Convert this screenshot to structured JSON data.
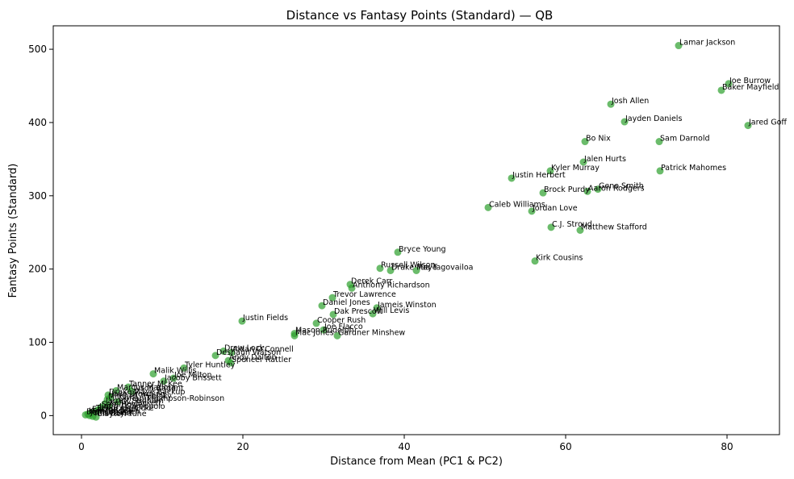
{
  "chart_data": {
    "type": "scatter",
    "title": "Distance vs Fantasy Points (Standard) — QB",
    "xlabel": "Distance from Mean (PC1 & PC2)",
    "ylabel": "Fantasy Points (Standard)",
    "xlim": [
      -3.5,
      86.5
    ],
    "ylim": [
      -26,
      532
    ],
    "xticks": [
      0,
      20,
      40,
      60,
      80
    ],
    "yticks": [
      0,
      100,
      200,
      300,
      400,
      500
    ],
    "grid": false,
    "marker_color": "#2ca02c",
    "points": [
      {
        "name": "Lamar Jackson",
        "x": 74.0,
        "y": 505
      },
      {
        "name": "Joe Burrow",
        "x": 80.2,
        "y": 453
      },
      {
        "name": "Baker Mayfield",
        "x": 79.3,
        "y": 444
      },
      {
        "name": "Josh Allen",
        "x": 65.6,
        "y": 425
      },
      {
        "name": "Jayden Daniels",
        "x": 67.3,
        "y": 401
      },
      {
        "name": "Jared Goff",
        "x": 82.6,
        "y": 396
      },
      {
        "name": "Bo Nix",
        "x": 62.4,
        "y": 374
      },
      {
        "name": "Sam Darnold",
        "x": 71.6,
        "y": 374
      },
      {
        "name": "Jalen Hurts",
        "x": 62.2,
        "y": 346
      },
      {
        "name": "Patrick Mahomes",
        "x": 71.7,
        "y": 334
      },
      {
        "name": "Kyler Murray",
        "x": 58.1,
        "y": 334
      },
      {
        "name": "Justin Herbert",
        "x": 53.3,
        "y": 324
      },
      {
        "name": "Geno Smith",
        "x": 64.0,
        "y": 309
      },
      {
        "name": "Aaron Rodgers",
        "x": 62.7,
        "y": 306
      },
      {
        "name": "Brock Purdy",
        "x": 57.2,
        "y": 304
      },
      {
        "name": "Caleb Williams",
        "x": 50.4,
        "y": 284
      },
      {
        "name": "Jordan Love",
        "x": 55.8,
        "y": 279
      },
      {
        "name": "C.J. Stroud",
        "x": 58.2,
        "y": 257
      },
      {
        "name": "Matthew Stafford",
        "x": 61.8,
        "y": 253
      },
      {
        "name": "Bryce Young",
        "x": 39.2,
        "y": 223
      },
      {
        "name": "Kirk Cousins",
        "x": 56.2,
        "y": 211
      },
      {
        "name": "Russell Wilson",
        "x": 37.0,
        "y": 201
      },
      {
        "name": "Drake Maye",
        "x": 38.3,
        "y": 198
      },
      {
        "name": "Tua Tagovailoa",
        "x": 41.5,
        "y": 198
      },
      {
        "name": "Derek Carr",
        "x": 33.3,
        "y": 179
      },
      {
        "name": "Anthony Richardson",
        "x": 33.5,
        "y": 174
      },
      {
        "name": "Trevor Lawrence",
        "x": 31.1,
        "y": 161
      },
      {
        "name": "Daniel Jones",
        "x": 29.8,
        "y": 150
      },
      {
        "name": "Jameis Winston",
        "x": 36.6,
        "y": 147
      },
      {
        "name": "Will Levis",
        "x": 36.1,
        "y": 139
      },
      {
        "name": "Dak Prescott",
        "x": 31.2,
        "y": 138
      },
      {
        "name": "Justin Fields",
        "x": 19.9,
        "y": 129
      },
      {
        "name": "Cooper Rush",
        "x": 29.1,
        "y": 126
      },
      {
        "name": "Joe Flacco",
        "x": 30.0,
        "y": 117
      },
      {
        "name": "Mason Rudolph",
        "x": 26.4,
        "y": 112
      },
      {
        "name": "Gardner Minshew",
        "x": 31.7,
        "y": 109
      },
      {
        "name": "Mac Jones",
        "x": 26.4,
        "y": 109
      },
      {
        "name": "Drew Lock",
        "x": 17.6,
        "y": 88
      },
      {
        "name": "Aidan O'Connell",
        "x": 18.6,
        "y": 86
      },
      {
        "name": "Deshaun Watson",
        "x": 16.6,
        "y": 82
      },
      {
        "name": "Andy Dalton",
        "x": 18.2,
        "y": 75
      },
      {
        "name": "Spencer Rattler",
        "x": 18.5,
        "y": 72
      },
      {
        "name": "Tyler Huntley",
        "x": 12.7,
        "y": 65
      },
      {
        "name": "Malik Willis",
        "x": 8.9,
        "y": 57
      },
      {
        "name": "Joe Milton",
        "x": 11.4,
        "y": 51
      },
      {
        "name": "Jacoby Brissett",
        "x": 10.2,
        "y": 47
      },
      {
        "name": "Tanner McKee",
        "x": 5.8,
        "y": 39
      },
      {
        "name": "Marcus Mariota",
        "x": 4.3,
        "y": 34
      },
      {
        "name": "Tyson Bagent",
        "x": 6.2,
        "y": 33
      },
      {
        "name": "Drake Maye Backup",
        "x": 3.3,
        "y": 28
      },
      {
        "name": "Jake Browning",
        "x": 3.6,
        "y": 25
      },
      {
        "name": "Mitchell Trubisky",
        "x": 3.2,
        "y": 22
      },
      {
        "name": "Dorian Thompson-Robinson",
        "x": 4.5,
        "y": 19
      },
      {
        "name": "Jarrett Stidham",
        "x": 2.9,
        "y": 16
      },
      {
        "name": "Kenny Pickett",
        "x": 3.4,
        "y": 13
      },
      {
        "name": "Sam Howell",
        "x": 2.4,
        "y": 11
      },
      {
        "name": "Jimmy Garoppolo",
        "x": 2.1,
        "y": 8
      },
      {
        "name": "Taylor Heinicke",
        "x": 1.7,
        "y": 6
      },
      {
        "name": "Easton Stick",
        "x": 1.2,
        "y": 4
      },
      {
        "name": "Kyle Trask",
        "x": 0.8,
        "y": 2
      },
      {
        "name": "Brandon Allen",
        "x": 0.5,
        "y": 1
      },
      {
        "name": "Jeff Driskel",
        "x": 1.0,
        "y": 0
      },
      {
        "name": "Clayton Tune",
        "x": 1.8,
        "y": -2
      },
      {
        "name": "Tim Boyle",
        "x": 1.4,
        "y": -1
      }
    ]
  }
}
